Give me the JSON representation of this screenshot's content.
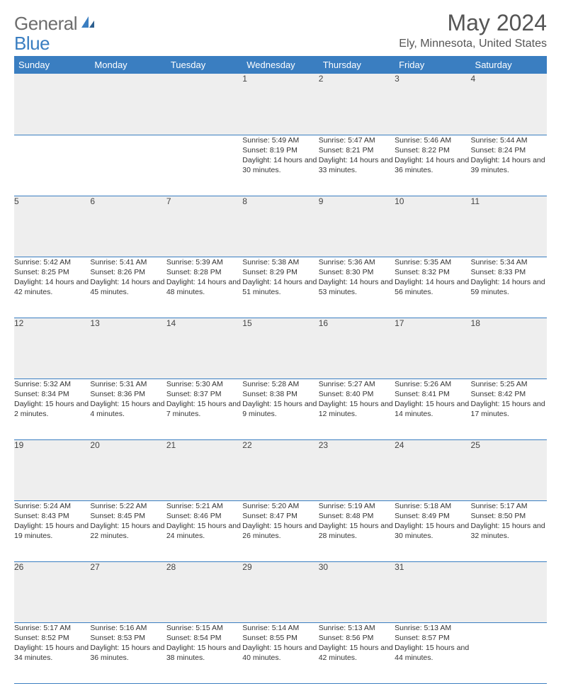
{
  "logo": {
    "part1": "General",
    "part2": "Blue"
  },
  "title": "May 2024",
  "subtitle": "Ely, Minnesota, United States",
  "weekdays": [
    "Sunday",
    "Monday",
    "Tuesday",
    "Wednesday",
    "Thursday",
    "Friday",
    "Saturday"
  ],
  "colors": {
    "header_bg": "#3a7ec1",
    "header_fg": "#ffffff",
    "grey": "#eeeeee",
    "border": "#3a7ec1"
  },
  "weeks": [
    [
      null,
      null,
      null,
      {
        "n": "1",
        "sr": "5:49 AM",
        "ss": "8:19 PM",
        "dl": "14 hours and 30 minutes."
      },
      {
        "n": "2",
        "sr": "5:47 AM",
        "ss": "8:21 PM",
        "dl": "14 hours and 33 minutes."
      },
      {
        "n": "3",
        "sr": "5:46 AM",
        "ss": "8:22 PM",
        "dl": "14 hours and 36 minutes."
      },
      {
        "n": "4",
        "sr": "5:44 AM",
        "ss": "8:24 PM",
        "dl": "14 hours and 39 minutes."
      }
    ],
    [
      {
        "n": "5",
        "sr": "5:42 AM",
        "ss": "8:25 PM",
        "dl": "14 hours and 42 minutes."
      },
      {
        "n": "6",
        "sr": "5:41 AM",
        "ss": "8:26 PM",
        "dl": "14 hours and 45 minutes."
      },
      {
        "n": "7",
        "sr": "5:39 AM",
        "ss": "8:28 PM",
        "dl": "14 hours and 48 minutes."
      },
      {
        "n": "8",
        "sr": "5:38 AM",
        "ss": "8:29 PM",
        "dl": "14 hours and 51 minutes."
      },
      {
        "n": "9",
        "sr": "5:36 AM",
        "ss": "8:30 PM",
        "dl": "14 hours and 53 minutes."
      },
      {
        "n": "10",
        "sr": "5:35 AM",
        "ss": "8:32 PM",
        "dl": "14 hours and 56 minutes."
      },
      {
        "n": "11",
        "sr": "5:34 AM",
        "ss": "8:33 PM",
        "dl": "14 hours and 59 minutes."
      }
    ],
    [
      {
        "n": "12",
        "sr": "5:32 AM",
        "ss": "8:34 PM",
        "dl": "15 hours and 2 minutes."
      },
      {
        "n": "13",
        "sr": "5:31 AM",
        "ss": "8:36 PM",
        "dl": "15 hours and 4 minutes."
      },
      {
        "n": "14",
        "sr": "5:30 AM",
        "ss": "8:37 PM",
        "dl": "15 hours and 7 minutes."
      },
      {
        "n": "15",
        "sr": "5:28 AM",
        "ss": "8:38 PM",
        "dl": "15 hours and 9 minutes."
      },
      {
        "n": "16",
        "sr": "5:27 AM",
        "ss": "8:40 PM",
        "dl": "15 hours and 12 minutes."
      },
      {
        "n": "17",
        "sr": "5:26 AM",
        "ss": "8:41 PM",
        "dl": "15 hours and 14 minutes."
      },
      {
        "n": "18",
        "sr": "5:25 AM",
        "ss": "8:42 PM",
        "dl": "15 hours and 17 minutes."
      }
    ],
    [
      {
        "n": "19",
        "sr": "5:24 AM",
        "ss": "8:43 PM",
        "dl": "15 hours and 19 minutes."
      },
      {
        "n": "20",
        "sr": "5:22 AM",
        "ss": "8:45 PM",
        "dl": "15 hours and 22 minutes."
      },
      {
        "n": "21",
        "sr": "5:21 AM",
        "ss": "8:46 PM",
        "dl": "15 hours and 24 minutes."
      },
      {
        "n": "22",
        "sr": "5:20 AM",
        "ss": "8:47 PM",
        "dl": "15 hours and 26 minutes."
      },
      {
        "n": "23",
        "sr": "5:19 AM",
        "ss": "8:48 PM",
        "dl": "15 hours and 28 minutes."
      },
      {
        "n": "24",
        "sr": "5:18 AM",
        "ss": "8:49 PM",
        "dl": "15 hours and 30 minutes."
      },
      {
        "n": "25",
        "sr": "5:17 AM",
        "ss": "8:50 PM",
        "dl": "15 hours and 32 minutes."
      }
    ],
    [
      {
        "n": "26",
        "sr": "5:17 AM",
        "ss": "8:52 PM",
        "dl": "15 hours and 34 minutes."
      },
      {
        "n": "27",
        "sr": "5:16 AM",
        "ss": "8:53 PM",
        "dl": "15 hours and 36 minutes."
      },
      {
        "n": "28",
        "sr": "5:15 AM",
        "ss": "8:54 PM",
        "dl": "15 hours and 38 minutes."
      },
      {
        "n": "29",
        "sr": "5:14 AM",
        "ss": "8:55 PM",
        "dl": "15 hours and 40 minutes."
      },
      {
        "n": "30",
        "sr": "5:13 AM",
        "ss": "8:56 PM",
        "dl": "15 hours and 42 minutes."
      },
      {
        "n": "31",
        "sr": "5:13 AM",
        "ss": "8:57 PM",
        "dl": "15 hours and 44 minutes."
      },
      null
    ]
  ],
  "labels": {
    "sunrise": "Sunrise: ",
    "sunset": "Sunset: ",
    "daylight": "Daylight: "
  }
}
